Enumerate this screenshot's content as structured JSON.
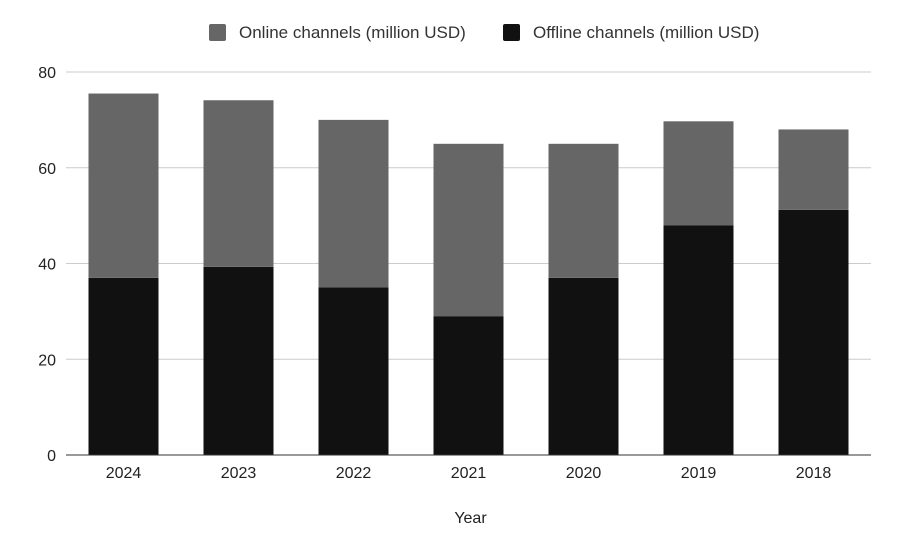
{
  "chart_data": {
    "type": "bar",
    "stacked": true,
    "categories": [
      "2024",
      "2023",
      "2022",
      "2021",
      "2020",
      "2019",
      "2018"
    ],
    "series": [
      {
        "name": "Offline channels (million USD)",
        "color": "#111111",
        "values": [
          37,
          39.3,
          35,
          29,
          37,
          48,
          51.2
        ]
      },
      {
        "name": "Online channels (million USD)",
        "color": "#666666",
        "values": [
          38.5,
          34.8,
          35,
          36,
          28,
          21.7,
          16.8
        ]
      }
    ],
    "legend_order": [
      1,
      0
    ],
    "xlabel": "Year",
    "ylabel": "",
    "ylim": [
      0,
      80
    ],
    "yticks": [
      0,
      20,
      40,
      60,
      80
    ],
    "grid": true,
    "legend_position": "top-center"
  }
}
